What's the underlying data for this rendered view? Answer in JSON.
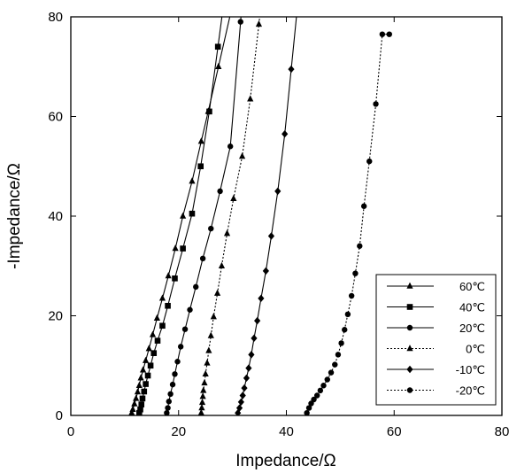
{
  "chart_data": {
    "type": "line",
    "title": "",
    "xlabel": "Impedance/Ω",
    "ylabel": "-Impedance/Ω",
    "xlim": [
      0,
      80
    ],
    "ylim": [
      0,
      80
    ],
    "xticks": [
      "0",
      "20",
      "40",
      "60",
      "80"
    ],
    "yticks": [
      "0",
      "20",
      "40",
      "60",
      "80"
    ],
    "legend_position": "bottom-right",
    "grid": false,
    "series": [
      {
        "name": "60℃",
        "marker": "triangle",
        "line": "solid",
        "x": [
          11.3,
          11.5,
          11.8,
          12.1,
          12.4,
          12.7,
          13.0,
          13.4,
          13.9,
          14.5,
          15.2,
          16.0,
          17.0,
          18.1,
          19.4,
          20.8,
          22.5,
          24.2,
          25.5,
          27.4
        ],
        "y": [
          0.5,
          1.2,
          2.3,
          3.4,
          4.7,
          6.0,
          7.5,
          9.1,
          11.0,
          13.4,
          16.2,
          19.5,
          23.5,
          28.0,
          33.5,
          40.0,
          47.0,
          55.0,
          61.0,
          70.0
        ]
      },
      {
        "name": "40℃",
        "marker": "square",
        "line": "solid",
        "x": [
          12.7,
          12.9,
          13.1,
          13.3,
          13.6,
          13.9,
          14.3,
          14.8,
          15.4,
          16.1,
          17.0,
          18.0,
          19.3,
          20.8,
          22.5,
          24.1,
          25.7,
          27.3
        ],
        "y": [
          0.5,
          1.2,
          2.2,
          3.4,
          4.8,
          6.3,
          8.0,
          10.0,
          12.5,
          15.0,
          18.0,
          22.0,
          27.5,
          33.5,
          40.5,
          50.0,
          61.0,
          74.0
        ]
      },
      {
        "name": "20℃",
        "marker": "circle",
        "line": "solid",
        "x": [
          17.8,
          18.0,
          18.2,
          18.5,
          18.9,
          19.3,
          19.8,
          20.4,
          21.2,
          22.1,
          23.2,
          24.5,
          26.0,
          27.7,
          29.6,
          31.5
        ],
        "y": [
          0.5,
          1.5,
          2.8,
          4.3,
          6.2,
          8.3,
          10.8,
          13.8,
          17.3,
          21.2,
          25.8,
          31.5,
          37.5,
          45.0,
          54.0,
          79.0
        ]
      },
      {
        "name": "0℃",
        "marker": "triangle",
        "line": "dotted",
        "x": [
          24.2,
          24.3,
          24.4,
          24.5,
          24.6,
          24.8,
          25.0,
          25.3,
          25.6,
          26.0,
          26.5,
          27.2,
          28.0,
          29.0,
          30.2,
          31.8,
          33.3,
          34.9
        ],
        "y": [
          0.5,
          1.5,
          2.6,
          3.8,
          5.0,
          6.5,
          8.3,
          10.5,
          13.0,
          16.0,
          19.8,
          24.5,
          30.0,
          36.5,
          43.5,
          52.0,
          63.5,
          78.5
        ]
      },
      {
        "name": "-10℃",
        "marker": "diamond",
        "line": "solid",
        "x": [
          31.0,
          31.3,
          31.6,
          31.9,
          32.2,
          32.6,
          33.0,
          33.5,
          34.0,
          34.6,
          35.3,
          36.2,
          37.2,
          38.4,
          39.7,
          40.9
        ],
        "y": [
          0.5,
          1.5,
          2.7,
          4.0,
          5.5,
          7.5,
          9.5,
          12.2,
          15.5,
          19.0,
          23.5,
          29.0,
          36.0,
          45.0,
          56.5,
          69.5
        ]
      },
      {
        "name": "-20℃",
        "marker": "circle",
        "line": "dotted",
        "x": [
          43.8,
          44.2,
          44.6,
          45.1,
          45.7,
          46.3,
          46.9,
          47.6,
          48.3,
          49.0,
          49.6,
          50.2,
          50.8,
          51.4,
          52.1,
          52.8,
          53.6,
          54.4,
          55.4,
          56.6,
          57.8,
          59.1
        ],
        "y": [
          0.5,
          1.5,
          2.4,
          3.2,
          4.0,
          5.0,
          6.0,
          7.2,
          8.6,
          10.2,
          12.2,
          14.5,
          17.2,
          20.3,
          24.0,
          28.5,
          34.0,
          42.0,
          51.0,
          62.5,
          76.5,
          76.5
        ]
      }
    ]
  }
}
